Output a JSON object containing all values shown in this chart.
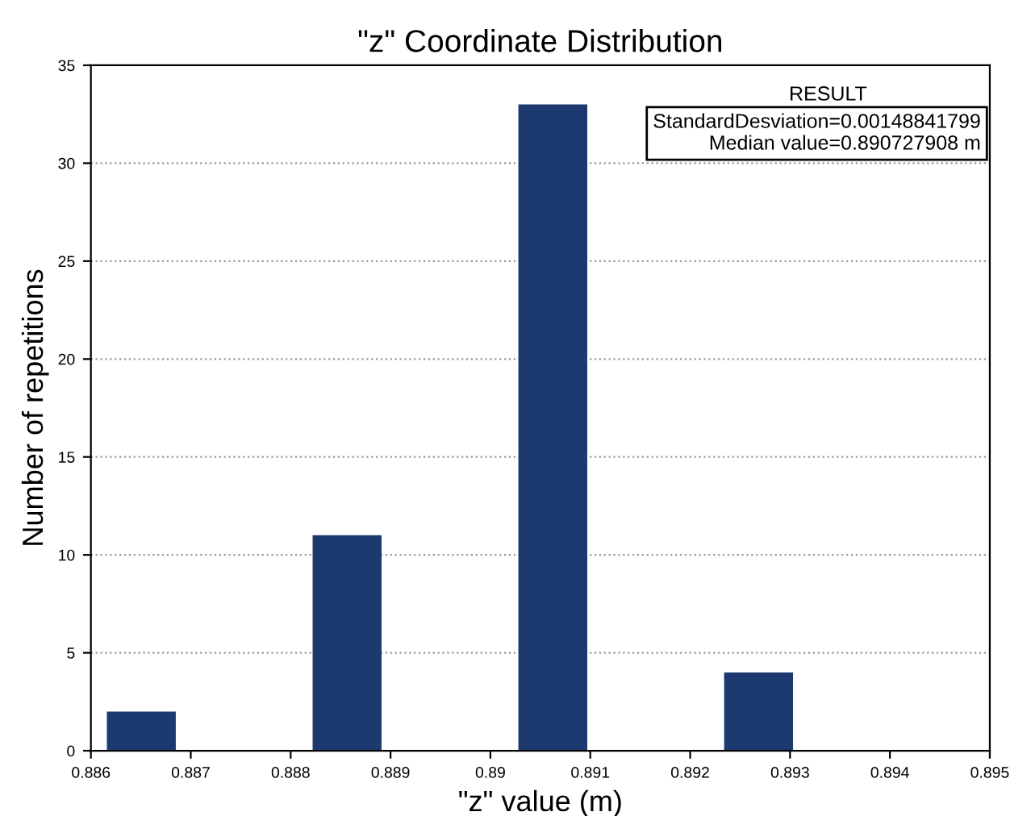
{
  "chart_data": {
    "type": "histogram",
    "title": "\"z\" Coordinate Distribution",
    "xlabel": "\"z\" value (m)",
    "ylabel": "Number of repetitions",
    "bins": [
      0.88616,
      0.88685,
      0.88822,
      0.88891,
      0.89028,
      0.89097,
      0.89234,
      0.89303
    ],
    "values": [
      2,
      0,
      11,
      0,
      33,
      0,
      4
    ],
    "color": "#1c3a70",
    "xlim": [
      0.886,
      0.895
    ],
    "xticks": [
      0.886,
      0.887,
      0.888,
      0.889,
      0.89,
      0.891,
      0.892,
      0.893,
      0.894,
      0.895
    ],
    "ylim": [
      0,
      35
    ],
    "yticks": [
      0,
      5,
      10,
      15,
      20,
      25,
      30,
      35
    ],
    "grid": "y",
    "annotations": [
      "RESULT",
      "StandardDesviation=0.00148841799",
      "Median value=0.890727908 m"
    ]
  }
}
